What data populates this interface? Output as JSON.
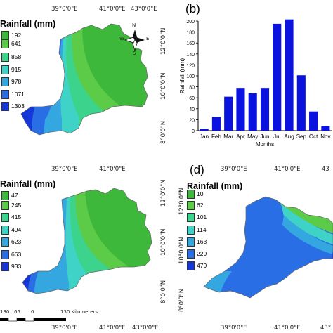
{
  "panel_b": {
    "label": "(b)",
    "chart_data": {
      "type": "bar",
      "categories": [
        "Jan",
        "Feb",
        "Mar",
        "Apr",
        "May",
        "Jun",
        "Jul",
        "Aug",
        "Sep",
        "Oct",
        "Nov"
      ],
      "values": [
        3,
        25,
        62,
        78,
        68,
        78,
        195,
        203,
        101,
        35,
        8
      ],
      "ylabel": "Rainfall (mm)",
      "xlabel": "Months",
      "ylim": [
        0,
        200
      ],
      "yticks": [
        "0",
        "20",
        "40",
        "60",
        "80",
        "100",
        "120",
        "140",
        "160",
        "180",
        "200"
      ],
      "bar_color": "#0a12e0"
    }
  },
  "panel_d": {
    "label": "(d)"
  },
  "map_a": {
    "legend_title": "Rainfall (mm)",
    "legend": [
      {
        "label": "192",
        "color": "#3db83a"
      },
      {
        "label": "641",
        "color": "#5ccb47"
      },
      {
        "label": "858",
        "color": "#3cd48c"
      },
      {
        "label": "915",
        "color": "#3fd3c8"
      },
      {
        "label": "978",
        "color": "#34a6e0"
      },
      {
        "label": "1071",
        "color": "#2a6ee6"
      },
      {
        "label": "1303",
        "color": "#1536d8"
      }
    ],
    "lon_ticks": [
      "39°0'0\"E",
      "41°0'0\"E",
      "43°0'0\"E"
    ],
    "lat_ticks": [
      "12°0'0\"N",
      "10°0'0\"N",
      "8°0'0\"N"
    ],
    "compass": {
      "n": "N",
      "s": "S",
      "e": "E",
      "w": "W"
    }
  },
  "map_c": {
    "legend_title": "Rainfall (mm)",
    "legend": [
      {
        "label": "47",
        "color": "#3db83a"
      },
      {
        "label": "245",
        "color": "#5ccb47"
      },
      {
        "label": "415",
        "color": "#3cd48c"
      },
      {
        "label": "494",
        "color": "#3fd3c8"
      },
      {
        "label": "623",
        "color": "#34a6e0"
      },
      {
        "label": "663",
        "color": "#2a6ee6"
      },
      {
        "label": "933",
        "color": "#1536d8"
      }
    ],
    "lon_ticks_top": [
      "39°0'0\"E",
      "41°0'0\"E"
    ],
    "lon_ticks_bottom": [
      "39°0'0\"E",
      "41°0'0\"E",
      "43°0'0\"E"
    ],
    "lat_ticks": [
      "12°0'0\"N",
      "10°0'0\"N",
      "8°0'0\"N"
    ],
    "scale": {
      "labels": [
        "130",
        "65",
        "0",
        "130 Kilometers"
      ]
    }
  },
  "map_d": {
    "legend_title": "Rainfall (mm)",
    "legend": [
      {
        "label": "10",
        "color": "#3db83a"
      },
      {
        "label": "62",
        "color": "#5ccb47"
      },
      {
        "label": "101",
        "color": "#3cd48c"
      },
      {
        "label": "114",
        "color": "#3fd3c8"
      },
      {
        "label": "163",
        "color": "#34a6e0"
      },
      {
        "label": "229",
        "color": "#2a6ee6"
      },
      {
        "label": "479",
        "color": "#1536d8"
      }
    ],
    "lon_ticks_top": [
      "39°0'0\"E",
      "41°0'0\"E",
      "43"
    ],
    "lon_ticks_bottom": [
      "39°0'0\"E",
      "41°0'0\"E",
      "43°"
    ],
    "lat_ticks": [
      "12°0'0\"N",
      "10°0'0\"N",
      "8°0'0\"N"
    ]
  }
}
